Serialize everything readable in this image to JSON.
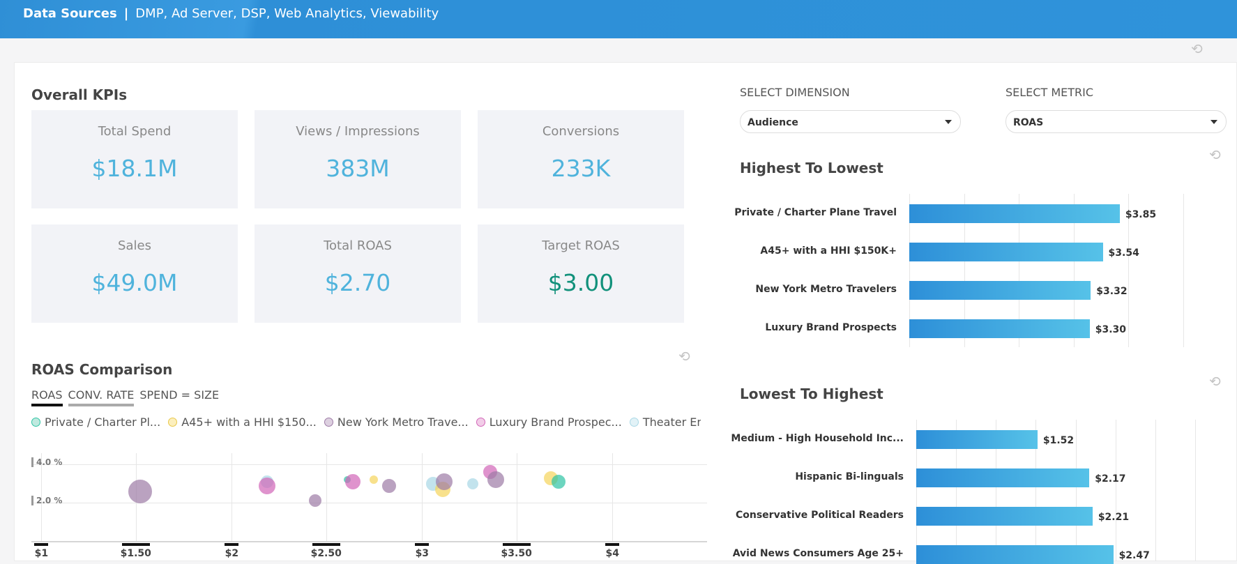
{
  "header": {
    "title": "Data Sources",
    "separator": "|",
    "subtitle": "DMP, Ad Server, DSP, Web Analytics, Viewability"
  },
  "kpis": {
    "title": "Overall KPIs",
    "tiles": [
      {
        "label": "Total Spend",
        "value": "$18.1M"
      },
      {
        "label": "Views / Impressions",
        "value": "383M"
      },
      {
        "label": "Conversions",
        "value": "233K"
      },
      {
        "label": "Sales",
        "value": "$49.0M"
      },
      {
        "label": "Total ROAS",
        "value": "$2.70"
      },
      {
        "label": "Target ROAS",
        "value": "$3.00"
      }
    ]
  },
  "selectors": {
    "dimension_label": "SELECT DIMENSION",
    "dimension_value": "Audience",
    "metric_label": "SELECT METRIC",
    "metric_value": "ROAS"
  },
  "highest": {
    "title": "Highest To Lowest",
    "rows": [
      {
        "label": "Private / Charter Plane Travel",
        "value": 3.85,
        "display": "$3.85"
      },
      {
        "label": "A45+ with a HHI $150K+",
        "value": 3.54,
        "display": "$3.54"
      },
      {
        "label": "New York Metro Travelers",
        "value": 3.32,
        "display": "$3.32"
      },
      {
        "label": "Luxury Brand Prospects",
        "value": 3.3,
        "display": "$3.30"
      }
    ]
  },
  "lowest": {
    "title": "Lowest To Highest",
    "rows": [
      {
        "label": "Medium - High Household Inc...",
        "value": 1.52,
        "display": "$1.52"
      },
      {
        "label": "Hispanic Bi-linguals",
        "value": 2.17,
        "display": "$2.17"
      },
      {
        "label": "Conservative Political Readers",
        "value": 2.21,
        "display": "$2.21"
      },
      {
        "label": "Avid News Consumers Age 25+",
        "value": 2.47,
        "display": "$2.47"
      }
    ]
  },
  "roas_comparison": {
    "title": "ROAS Comparison",
    "tabs": [
      "ROAS",
      "CONV. RATE",
      "SPEND = SIZE"
    ],
    "legend": [
      {
        "name": "Private / Charter Pl...",
        "color": "#2ec4a4"
      },
      {
        "name": "A45+ with a HHI $150...",
        "color": "#f6d55c"
      },
      {
        "name": "New York Metro Trave...",
        "color": "#9d7ba6"
      },
      {
        "name": "Luxury Brand Prospec...",
        "color": "#d266b8"
      },
      {
        "name": "Theater Enthusiast",
        "color": "#a9d8e6"
      },
      {
        "name": "(",
        "color": "#b08ab8"
      }
    ]
  },
  "chart_data": {
    "type": "scatter",
    "title": "ROAS Comparison",
    "x_ticks": [
      "$1",
      "$1.50",
      "$2",
      "$2.50",
      "$3",
      "$3.50",
      "$4"
    ],
    "y_ticks": [
      "4.0 %",
      "2.0 %"
    ],
    "xlim": [
      0.95,
      4.5
    ],
    "ylim": [
      0,
      4.6
    ],
    "points": [
      {
        "x": 1.52,
        "y": 2.6,
        "size": 17,
        "color": "#9d7ba6"
      },
      {
        "x": 2.19,
        "y": 3.1,
        "size": 9,
        "color": "#a9d8e6"
      },
      {
        "x": 2.19,
        "y": 2.9,
        "size": 12,
        "color": "#d266b8"
      },
      {
        "x": 2.44,
        "y": 2.1,
        "size": 9,
        "color": "#9d7ba6"
      },
      {
        "x": 2.61,
        "y": 3.2,
        "size": 5,
        "color": "#2ec4a4"
      },
      {
        "x": 2.64,
        "y": 3.1,
        "size": 11,
        "color": "#d266b8"
      },
      {
        "x": 2.75,
        "y": 3.2,
        "size": 6,
        "color": "#f6d55c"
      },
      {
        "x": 2.83,
        "y": 2.9,
        "size": 10,
        "color": "#9d7ba6"
      },
      {
        "x": 3.06,
        "y": 3.0,
        "size": 10,
        "color": "#a9d8e6"
      },
      {
        "x": 3.11,
        "y": 2.7,
        "size": 11,
        "color": "#f6d55c"
      },
      {
        "x": 3.12,
        "y": 3.1,
        "size": 12,
        "color": "#9d7ba6"
      },
      {
        "x": 3.27,
        "y": 3.0,
        "size": 8,
        "color": "#a9d8e6"
      },
      {
        "x": 3.36,
        "y": 3.6,
        "size": 10,
        "color": "#d266b8"
      },
      {
        "x": 3.39,
        "y": 3.2,
        "size": 12,
        "color": "#9d7ba6"
      },
      {
        "x": 3.68,
        "y": 3.3,
        "size": 10,
        "color": "#f6d55c"
      },
      {
        "x": 3.72,
        "y": 3.1,
        "size": 10,
        "color": "#2ec4a4"
      }
    ]
  }
}
